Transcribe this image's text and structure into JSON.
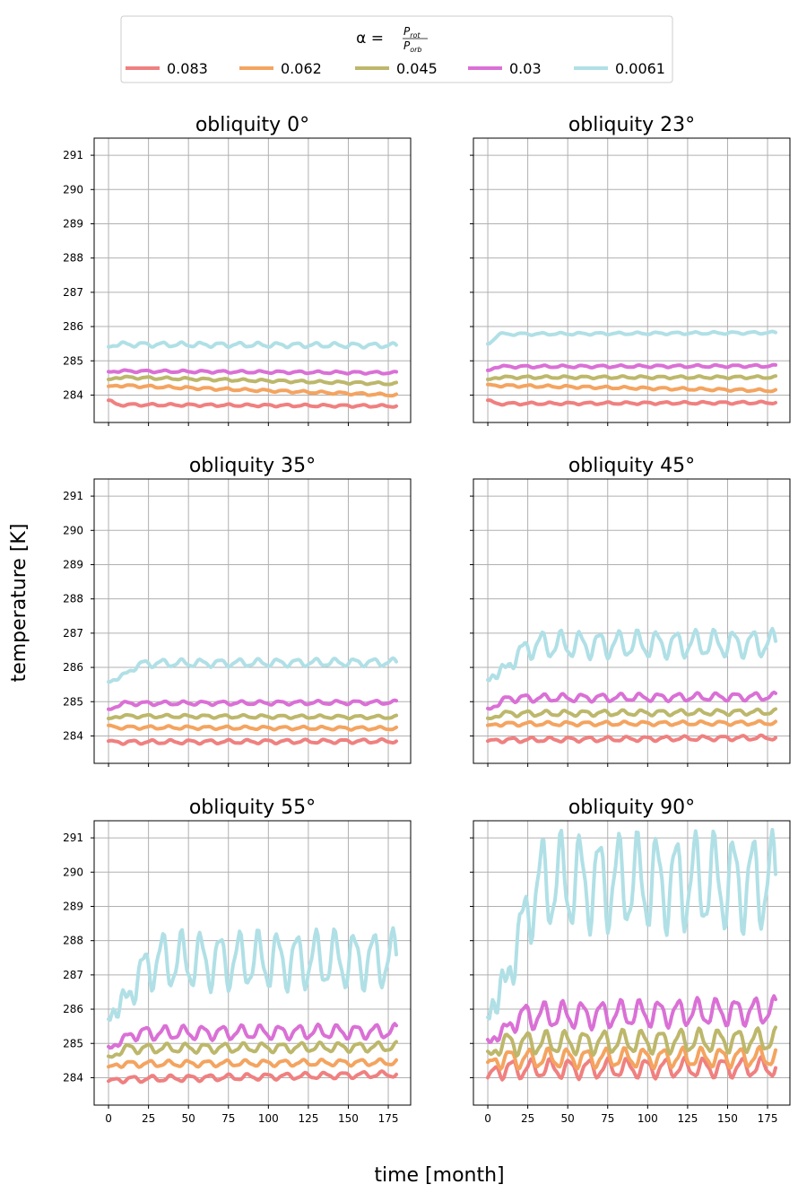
{
  "figure": {
    "ylabel": "temperature [K]",
    "xlabel": "time [month]"
  },
  "legend": {
    "title_prefix": "α =",
    "frac_num_main": "P",
    "frac_num_sub": "rot",
    "frac_den_main": "P",
    "frac_den_sub": "orb",
    "entries": [
      {
        "label": "0.083",
        "color": "#f08080"
      },
      {
        "label": "0.062",
        "color": "#f4a460"
      },
      {
        "label": "0.045",
        "color": "#bdb76b"
      },
      {
        "label": "0.03",
        "color": "#da70d6"
      },
      {
        "label": "0.0061",
        "color": "#b0e0e6"
      }
    ]
  },
  "chart_data": {
    "type": "line",
    "x_range": [
      0,
      180
    ],
    "x_step_months": 1,
    "xlim": [
      -9,
      189
    ],
    "ylim": [
      283.2,
      291.5
    ],
    "xticks": [
      0,
      25,
      50,
      75,
      100,
      125,
      150,
      175
    ],
    "yticks": [
      284,
      285,
      286,
      287,
      288,
      289,
      290,
      291
    ],
    "grid": true,
    "legend_position": "top-center",
    "series_names": [
      "0.083",
      "0.062",
      "0.045",
      "0.03",
      "0.0061"
    ],
    "panels": [
      {
        "title": "obliquity 0°",
        "series": [
          {
            "name": "0.083",
            "start": 283.85,
            "settle": 283.72,
            "trend_end": 283.68,
            "amp": 0.03,
            "rise_months": 6
          },
          {
            "name": "0.062",
            "start": 284.25,
            "settle": 284.28,
            "trend_end": 284.0,
            "amp": 0.03,
            "rise_months": 6
          },
          {
            "name": "0.045",
            "start": 284.45,
            "settle": 284.52,
            "trend_end": 284.33,
            "amp": 0.03,
            "rise_months": 6
          },
          {
            "name": "0.03",
            "start": 284.68,
            "settle": 284.7,
            "trend_end": 284.65,
            "amp": 0.03,
            "rise_months": 6
          },
          {
            "name": "0.0061",
            "start": 285.42,
            "settle": 285.48,
            "trend_end": 285.45,
            "amp": 0.06,
            "rise_months": 6
          }
        ]
      },
      {
        "title": "obliquity 23°",
        "series": [
          {
            "name": "0.083",
            "start": 283.85,
            "settle": 283.75,
            "trend_end": 283.78,
            "amp": 0.03,
            "rise_months": 6
          },
          {
            "name": "0.062",
            "start": 284.3,
            "settle": 284.28,
            "trend_end": 284.13,
            "amp": 0.03,
            "rise_months": 6
          },
          {
            "name": "0.045",
            "start": 284.45,
            "settle": 284.52,
            "trend_end": 284.52,
            "amp": 0.03,
            "rise_months": 6
          },
          {
            "name": "0.03",
            "start": 284.72,
            "settle": 284.83,
            "trend_end": 284.85,
            "amp": 0.03,
            "rise_months": 6
          },
          {
            "name": "0.0061",
            "start": 285.5,
            "settle": 285.78,
            "trend_end": 285.82,
            "amp": 0.03,
            "rise_months": 8
          }
        ]
      },
      {
        "title": "obliquity 35°",
        "series": [
          {
            "name": "0.083",
            "start": 283.85,
            "settle": 283.82,
            "trend_end": 283.85,
            "amp": 0.05,
            "rise_months": 6
          },
          {
            "name": "0.062",
            "start": 284.3,
            "settle": 284.25,
            "trend_end": 284.22,
            "amp": 0.04,
            "rise_months": 6
          },
          {
            "name": "0.045",
            "start": 284.5,
            "settle": 284.58,
            "trend_end": 284.55,
            "amp": 0.04,
            "rise_months": 6
          },
          {
            "name": "0.03",
            "start": 284.78,
            "settle": 284.95,
            "trend_end": 284.98,
            "amp": 0.05,
            "rise_months": 10
          },
          {
            "name": "0.0061",
            "start": 285.6,
            "settle": 286.12,
            "trend_end": 286.15,
            "amp": 0.1,
            "rise_months": 24
          }
        ]
      },
      {
        "title": "obliquity 45°",
        "series": [
          {
            "name": "0.083",
            "start": 283.85,
            "settle": 283.88,
            "trend_end": 283.95,
            "amp": 0.06,
            "rise_months": 6
          },
          {
            "name": "0.062",
            "start": 284.3,
            "settle": 284.35,
            "trend_end": 284.38,
            "amp": 0.05,
            "rise_months": 6
          },
          {
            "name": "0.045",
            "start": 284.5,
            "settle": 284.65,
            "trend_end": 284.7,
            "amp": 0.07,
            "rise_months": 10
          },
          {
            "name": "0.03",
            "start": 284.8,
            "settle": 285.1,
            "trend_end": 285.15,
            "amp": 0.1,
            "rise_months": 14
          },
          {
            "name": "0.0061",
            "start": 285.7,
            "settle": 286.65,
            "trend_end": 286.7,
            "amp": 0.35,
            "rise_months": 30
          }
        ]
      },
      {
        "title": "obliquity 55°",
        "series": [
          {
            "name": "0.083",
            "start": 283.9,
            "settle": 283.95,
            "trend_end": 284.1,
            "amp": 0.08,
            "rise_months": 6
          },
          {
            "name": "0.062",
            "start": 284.3,
            "settle": 284.4,
            "trend_end": 284.45,
            "amp": 0.08,
            "rise_months": 6
          },
          {
            "name": "0.045",
            "start": 284.6,
            "settle": 284.85,
            "trend_end": 284.9,
            "amp": 0.12,
            "rise_months": 12
          },
          {
            "name": "0.03",
            "start": 284.9,
            "settle": 285.3,
            "trend_end": 285.35,
            "amp": 0.18,
            "rise_months": 18
          },
          {
            "name": "0.0061",
            "start": 285.85,
            "settle": 287.4,
            "trend_end": 287.45,
            "amp": 0.75,
            "rise_months": 30
          }
        ]
      },
      {
        "title": "obliquity 90°",
        "series": [
          {
            "name": "0.083",
            "start": 284.0,
            "settle": 284.25,
            "trend_end": 284.3,
            "amp": 0.25,
            "rise_months": 6
          },
          {
            "name": "0.062",
            "start": 284.4,
            "settle": 284.55,
            "trend_end": 284.6,
            "amp": 0.25,
            "rise_months": 6
          },
          {
            "name": "0.045",
            "start": 284.7,
            "settle": 285.0,
            "trend_end": 285.1,
            "amp": 0.3,
            "rise_months": 12
          },
          {
            "name": "0.03",
            "start": 285.1,
            "settle": 285.8,
            "trend_end": 285.95,
            "amp": 0.35,
            "rise_months": 24
          },
          {
            "name": "0.0061",
            "start": 286.0,
            "settle": 289.7,
            "trend_end": 289.7,
            "amp": 1.25,
            "rise_months": 36
          }
        ]
      }
    ]
  }
}
